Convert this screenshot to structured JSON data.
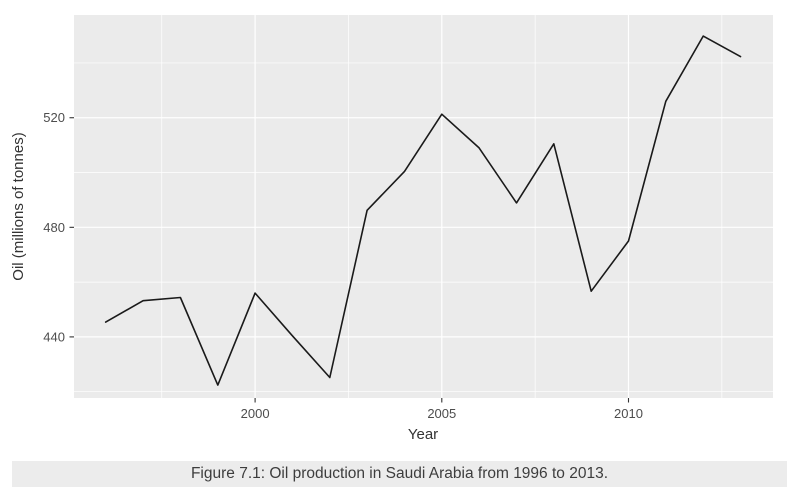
{
  "figure": {
    "caption": "Figure 7.1: Oil production in Saudi Arabia from 1996 to 2013."
  },
  "chart_data": {
    "type": "line",
    "title": "",
    "xlabel": "Year",
    "ylabel": "Oil (millions of tonnes)",
    "x": [
      1996,
      1997,
      1998,
      1999,
      2000,
      2001,
      2002,
      2003,
      2004,
      2005,
      2006,
      2007,
      2008,
      2009,
      2010,
      2011,
      2012,
      2013
    ],
    "y": [
      445.4,
      453.2,
      454.4,
      422.4,
      456.0,
      440.4,
      425.2,
      486.2,
      500.4,
      521.3,
      509.0,
      488.9,
      510.5,
      456.7,
      475.0,
      526.0,
      549.8,
      542.3
    ],
    "xlim": [
      1995.15,
      2013.87
    ],
    "ylim": [
      417.7,
      557.5
    ],
    "x_ticks": [
      2000,
      2005,
      2010
    ],
    "y_ticks": [
      440,
      480,
      520
    ],
    "x_minor_ticks": [
      1997.5,
      2002.5,
      2007.5,
      2012.5
    ],
    "y_minor_ticks": [
      420,
      460,
      500,
      540
    ],
    "grid": "on",
    "legend_position": "none",
    "colors": {
      "panel_background": "#ebebeb",
      "grid": "#ffffff",
      "line": "#1a1a1a",
      "tick_label": "#4d4d4d",
      "tick_mark": "#333333",
      "axis_title": "#333333",
      "caption_band": "#ececec",
      "caption_text": "#3d3d3d"
    }
  }
}
